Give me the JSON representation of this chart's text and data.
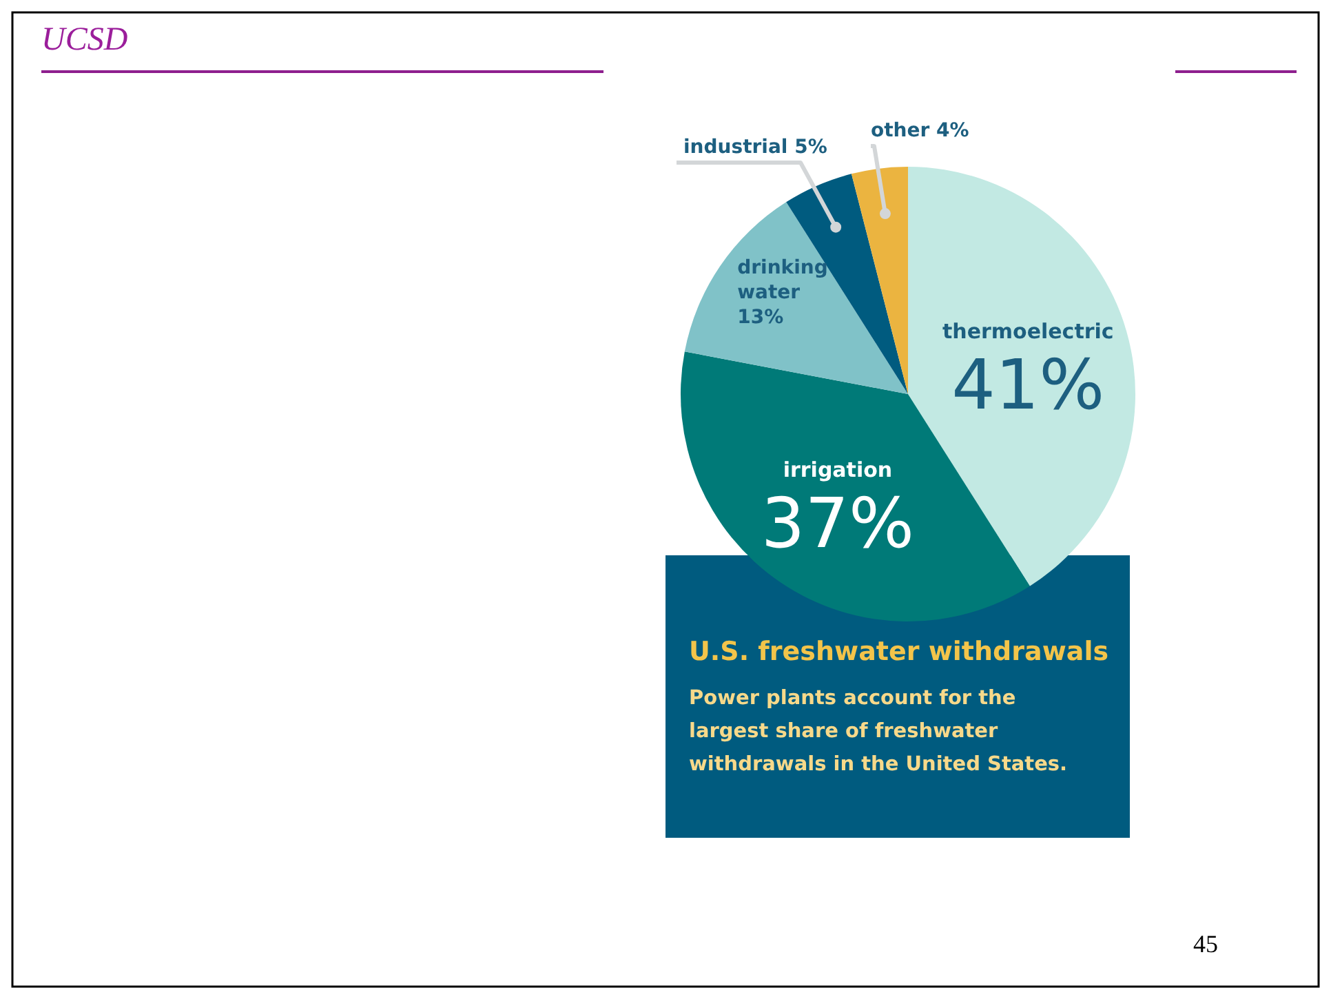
{
  "chart_data": {
    "type": "pie",
    "title": "U.S. freshwater withdrawals",
    "subtitle": "Power plants account for the largest share of freshwater withdrawals in the United States.",
    "categories": [
      "thermoelectric",
      "irrigation",
      "drinking water",
      "industrial",
      "other"
    ],
    "values": [
      41,
      37,
      13,
      5,
      4
    ],
    "value_labels": [
      "41%",
      "37%",
      "13%",
      "5%",
      "4%"
    ],
    "colors": [
      "#c2e9e3",
      "#007a78",
      "#80c2c8",
      "#005b7f",
      "#ebb440"
    ],
    "annotations": [
      "UCSD",
      "45"
    ]
  }
}
